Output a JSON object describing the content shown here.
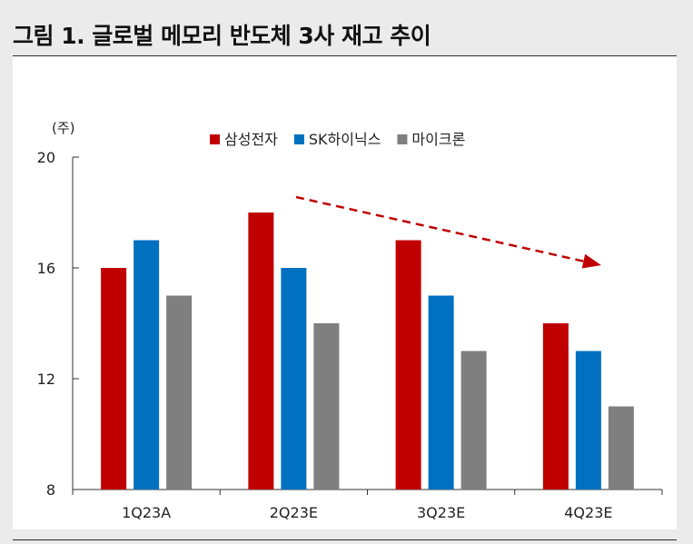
{
  "title": "그림 1. 글로벌 메모리 반도체 3사 재고 추이",
  "chart_data": {
    "type": "bar",
    "unit": "(주)",
    "categories": [
      "1Q23A",
      "2Q23E",
      "3Q23E",
      "4Q23E"
    ],
    "series": [
      {
        "name": "삼성전자",
        "values": [
          16,
          18,
          17,
          14
        ],
        "color": "#c00000"
      },
      {
        "name": "SK하이닉스",
        "values": [
          17,
          16,
          15,
          13
        ],
        "color": "#0070c0"
      },
      {
        "name": "마이크론",
        "values": [
          15,
          14,
          13,
          11
        ],
        "color": "#7f7f7f"
      }
    ],
    "ylim": [
      8,
      20
    ],
    "yticks": [
      8,
      12,
      16,
      20
    ],
    "legend_position": "top-center",
    "grid": false,
    "annotation": {
      "type": "dashed-arrow",
      "direction": "downward-right",
      "color": "#c00000"
    }
  }
}
